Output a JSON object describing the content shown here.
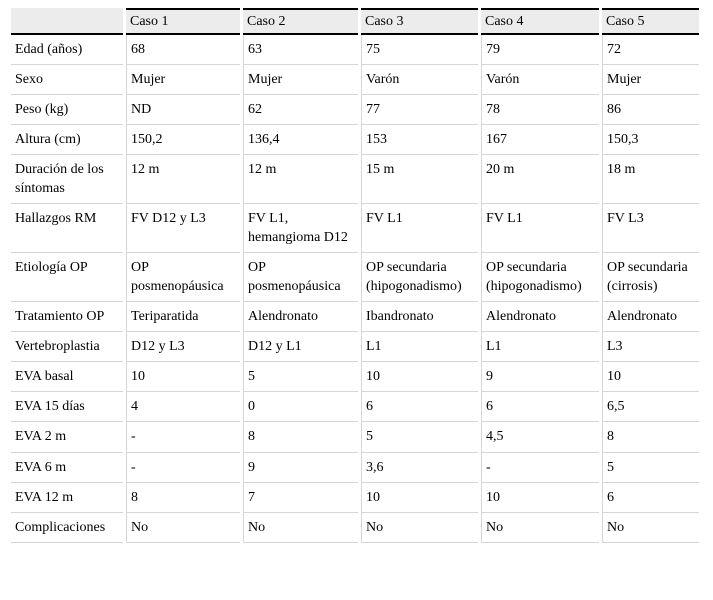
{
  "table": {
    "columns": [
      "",
      "Caso 1",
      "Caso 2",
      "Caso 3",
      "Caso 4",
      "Caso 5"
    ],
    "rows": [
      {
        "label": "Edad (años)",
        "values": [
          "68",
          "63",
          "75",
          "79",
          "72"
        ]
      },
      {
        "label": "Sexo",
        "values": [
          "Mujer",
          "Mujer",
          "Varón",
          "Varón",
          "Mujer"
        ]
      },
      {
        "label": "Peso (kg)",
        "values": [
          "ND",
          "62",
          "77",
          "78",
          "86"
        ]
      },
      {
        "label": "Altura (cm)",
        "values": [
          "150,2",
          "136,4",
          "153",
          "167",
          "150,3"
        ]
      },
      {
        "label": "Duración de los síntomas",
        "values": [
          "12 m",
          "12 m",
          "15 m",
          "20 m",
          "18 m"
        ]
      },
      {
        "label": "Hallazgos RM",
        "values": [
          "FV D12 y L3",
          "FV L1, hemangioma D12",
          "FV L1",
          "FV L1",
          "FV L3"
        ]
      },
      {
        "label": "Etiología OP",
        "values": [
          "OP posmenopáusica",
          "OP posmenopáusica",
          "OP secundaria (hipogonadismo)",
          "OP secundaria (hipogonadismo)",
          "OP secundaria (cirrosis)"
        ]
      },
      {
        "label": "Tratamiento OP",
        "values": [
          "Teriparatida",
          "Alendronato",
          "Ibandronato",
          "Alendronato",
          "Alendronato"
        ]
      },
      {
        "label": "Vertebroplastia",
        "values": [
          "D12 y L3",
          "D12 y L1",
          "L1",
          "L1",
          "L3"
        ]
      },
      {
        "label": "EVA basal",
        "values": [
          "10",
          "5",
          "10",
          "9",
          "10"
        ]
      },
      {
        "label": "EVA 15 días",
        "values": [
          "4",
          "0",
          "6",
          "6",
          "6,5"
        ]
      },
      {
        "label": "EVA 2 m",
        "values": [
          "-",
          "8",
          "5",
          "4,5",
          "8"
        ]
      },
      {
        "label": "EVA 6 m",
        "values": [
          "-",
          "9",
          "3,6",
          "-",
          "5"
        ]
      },
      {
        "label": "EVA 12 m",
        "values": [
          "8",
          "7",
          "10",
          "10",
          "6"
        ]
      },
      {
        "label": "Complicaciones",
        "values": [
          "No",
          "No",
          "No",
          "No",
          "No"
        ]
      }
    ]
  },
  "colors": {
    "header_background": "#ececec",
    "heavy_rule": "#000000",
    "light_rule": "#d6d6d6",
    "text": "#000000"
  }
}
